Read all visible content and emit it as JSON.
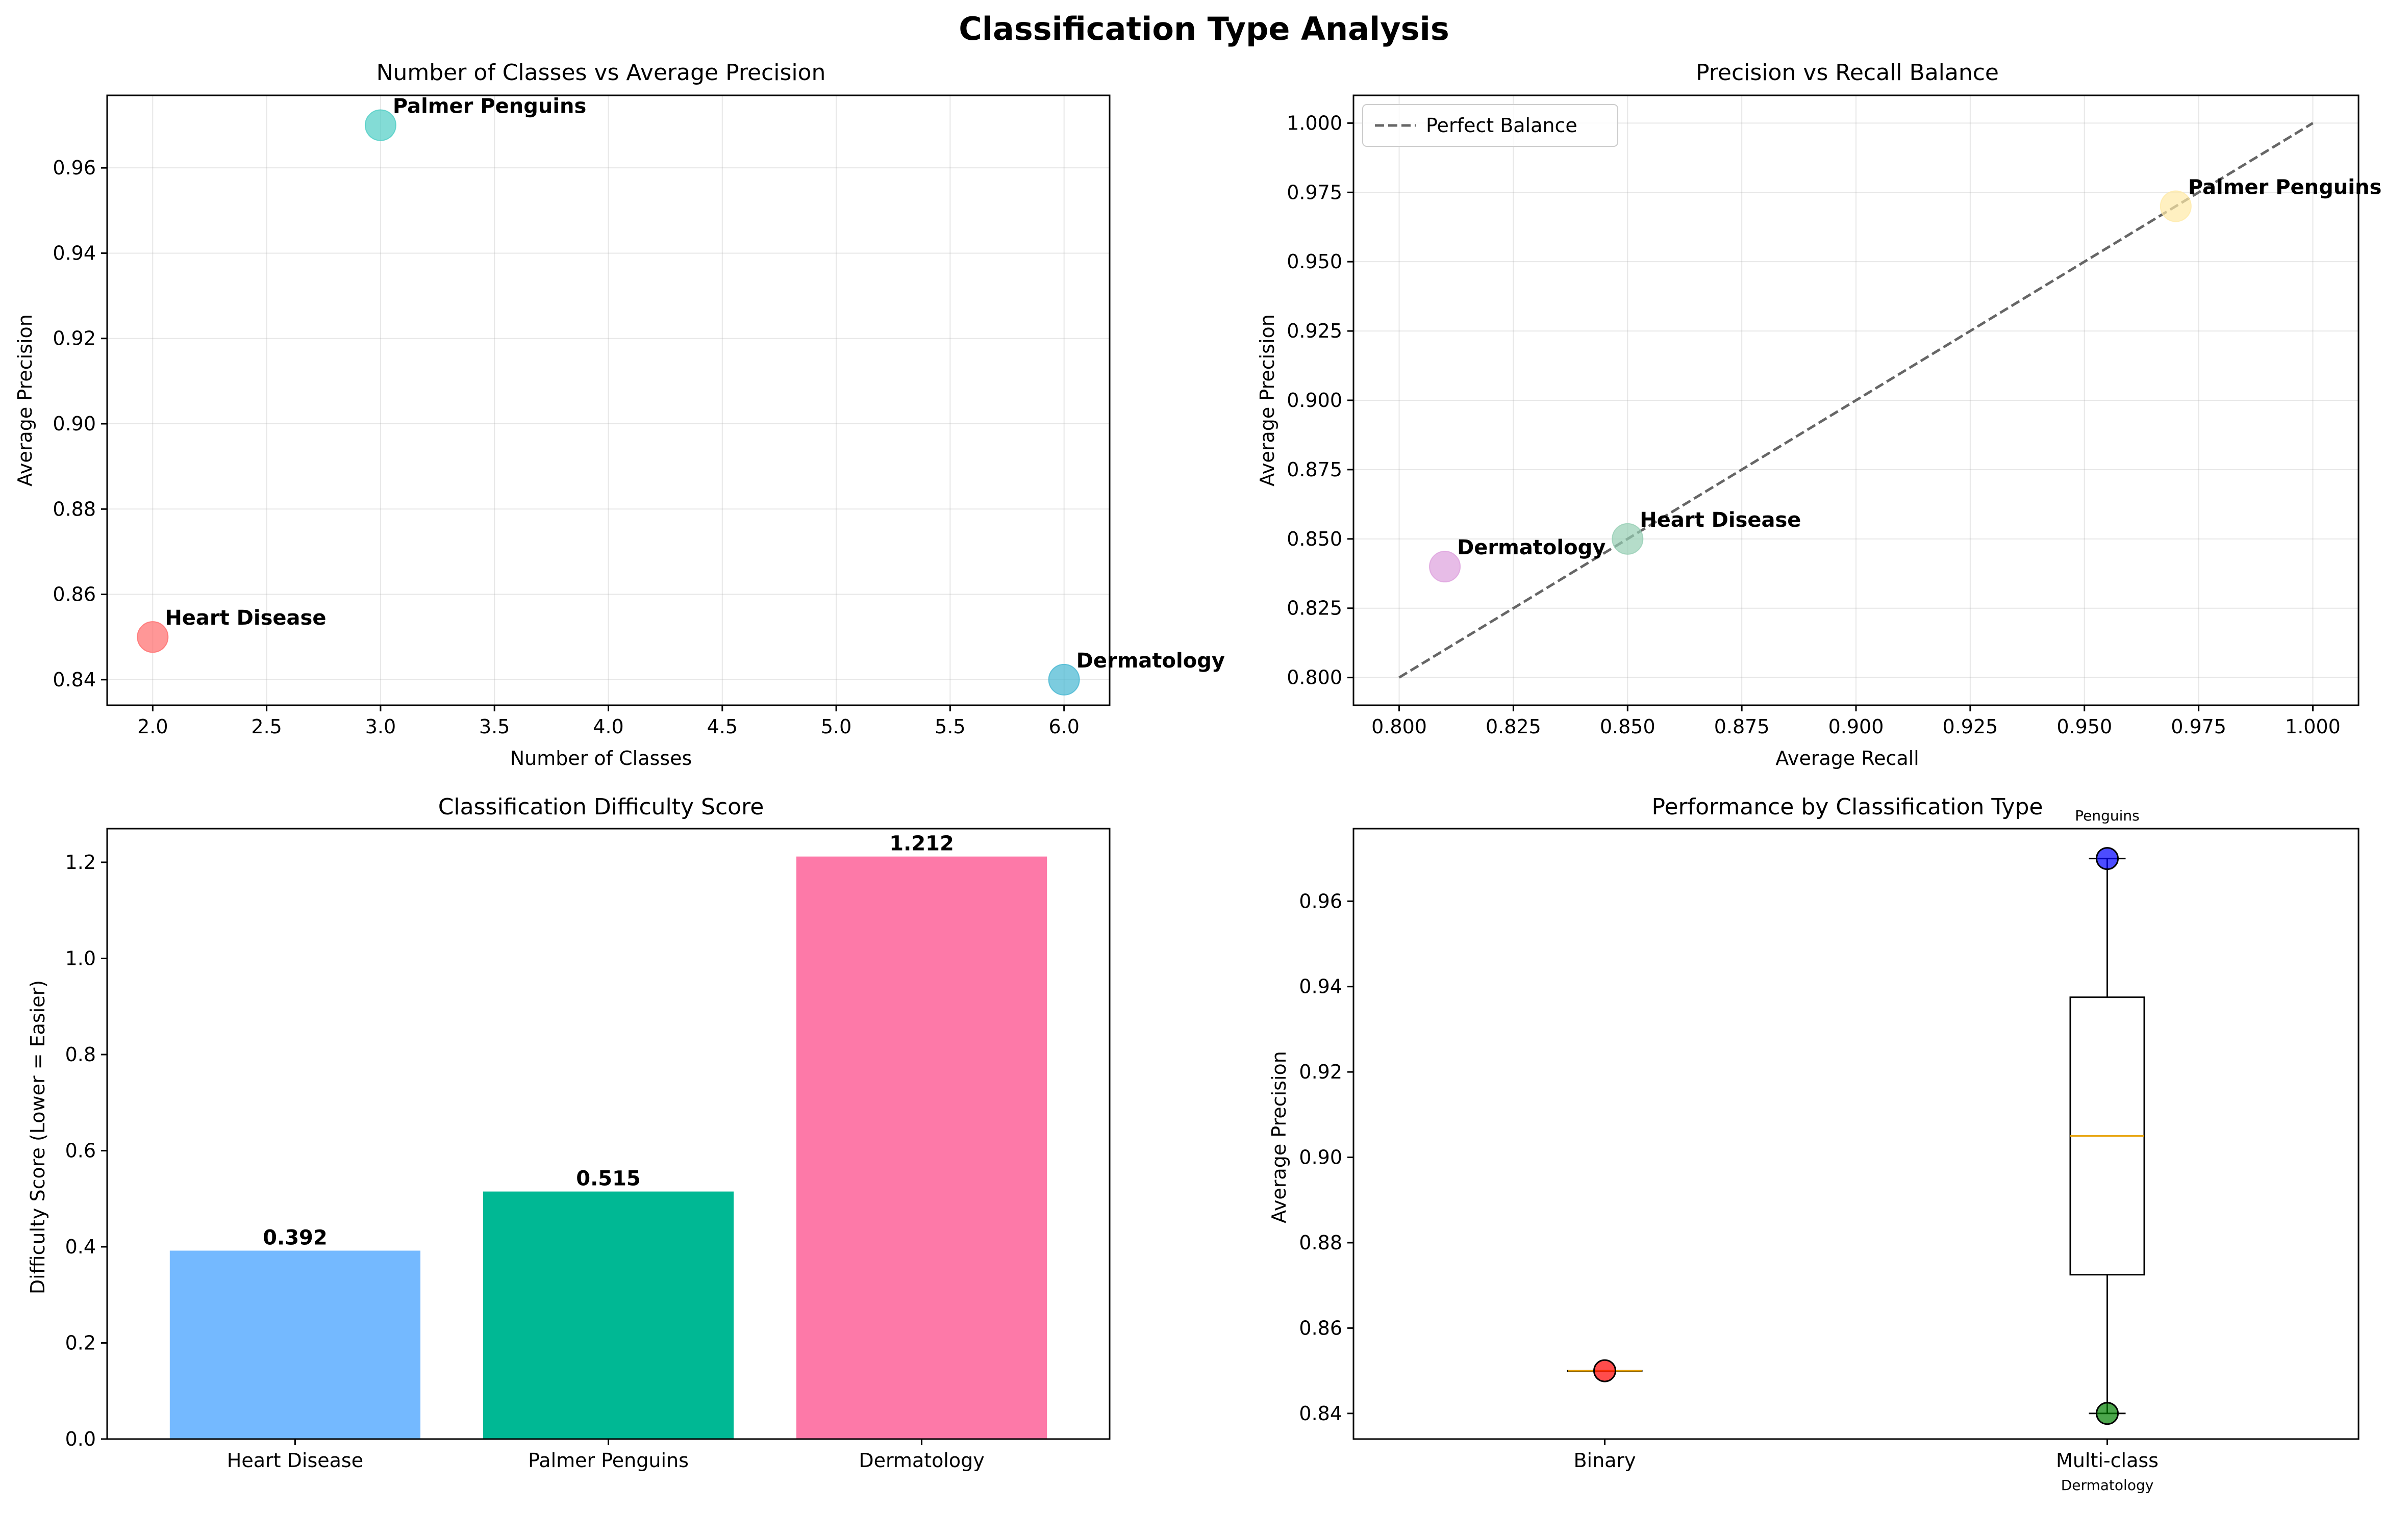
{
  "suptitle": "Classification Type Analysis",
  "chart_data": [
    {
      "id": "scatter_classes",
      "type": "scatter",
      "title": "Number of Classes vs Average Precision",
      "xlabel": "Number of Classes",
      "ylabel": "Average Precision",
      "xlim": [
        1.8,
        6.2
      ],
      "ylim": [
        0.834,
        0.977
      ],
      "xticks": [
        "2.0",
        "2.5",
        "3.0",
        "3.5",
        "4.0",
        "4.5",
        "5.0",
        "5.5",
        "6.0"
      ],
      "yticks": [
        "0.84",
        "0.86",
        "0.88",
        "0.90",
        "0.92",
        "0.94",
        "0.96"
      ],
      "grid": true,
      "points": [
        {
          "label": "Heart Disease",
          "x": 2,
          "y": 0.85,
          "color": "#FF6B6B"
        },
        {
          "label": "Palmer Penguins",
          "x": 3,
          "y": 0.97,
          "color": "#4ECDC4"
        },
        {
          "label": "Dermatology",
          "x": 6,
          "y": 0.84,
          "color": "#45B7D1"
        }
      ]
    },
    {
      "id": "scatter_balance",
      "type": "scatter",
      "title": "Precision vs Recall Balance",
      "xlabel": "Average Recall",
      "ylabel": "Average Precision",
      "xlim": [
        0.79,
        1.01
      ],
      "ylim": [
        0.79,
        1.01
      ],
      "xticks": [
        "0.800",
        "0.825",
        "0.850",
        "0.875",
        "0.900",
        "0.925",
        "0.950",
        "0.975",
        "1.000"
      ],
      "yticks": [
        "0.800",
        "0.825",
        "0.850",
        "0.875",
        "0.900",
        "0.925",
        "0.950",
        "0.975",
        "1.000"
      ],
      "grid": true,
      "legend": {
        "position": "top-left",
        "entries": [
          "Perfect Balance"
        ]
      },
      "reference_line": {
        "name": "Perfect Balance",
        "x": [
          0.8,
          1.0
        ],
        "y": [
          0.8,
          1.0
        ],
        "color": "#666666"
      },
      "points": [
        {
          "label": "Heart Disease",
          "x": 0.85,
          "y": 0.85,
          "color": "#96CEB4"
        },
        {
          "label": "Palmer Penguins",
          "x": 0.97,
          "y": 0.97,
          "color": "#FFEAA7"
        },
        {
          "label": "Dermatology",
          "x": 0.81,
          "y": 0.84,
          "color": "#DDA0DD"
        }
      ]
    },
    {
      "id": "bar_difficulty",
      "type": "bar",
      "title": "Classification Difficulty Score",
      "xlabel": "",
      "ylabel": "Difficulty Score (Lower = Easier)",
      "ylim": [
        0,
        1.27
      ],
      "yticks": [
        "0.0",
        "0.2",
        "0.4",
        "0.6",
        "0.8",
        "1.0",
        "1.2"
      ],
      "categories": [
        "Heart Disease",
        "Palmer Penguins",
        "Dermatology"
      ],
      "values": [
        0.392,
        0.515,
        1.212
      ],
      "value_labels": [
        "0.392",
        "0.515",
        "1.212"
      ],
      "colors": [
        "#74B9FF",
        "#00B894",
        "#FD79A8"
      ]
    },
    {
      "id": "box_type",
      "type": "box",
      "title": "Performance by Classification Type",
      "xlabel": "",
      "ylabel": "Average Precision",
      "ylim": [
        0.834,
        0.977
      ],
      "yticks": [
        "0.84",
        "0.86",
        "0.88",
        "0.90",
        "0.92",
        "0.94",
        "0.96"
      ],
      "categories": [
        "Binary",
        "Multi-class"
      ],
      "boxes": [
        {
          "name": "Binary",
          "min": 0.85,
          "q1": 0.85,
          "median": 0.85,
          "q3": 0.85,
          "max": 0.85
        },
        {
          "name": "Multi-class",
          "min": 0.84,
          "q1": 0.8725,
          "median": 0.905,
          "q3": 0.9375,
          "max": 0.97
        }
      ],
      "points": [
        {
          "category": "Binary",
          "y": 0.85,
          "color": "#FF0000"
        },
        {
          "category": "Multi-class",
          "y": 0.97,
          "color": "#0000FF",
          "label": "Penguins"
        },
        {
          "category": "Multi-class",
          "y": 0.84,
          "color": "#008000",
          "label": "Dermatology"
        }
      ]
    }
  ]
}
